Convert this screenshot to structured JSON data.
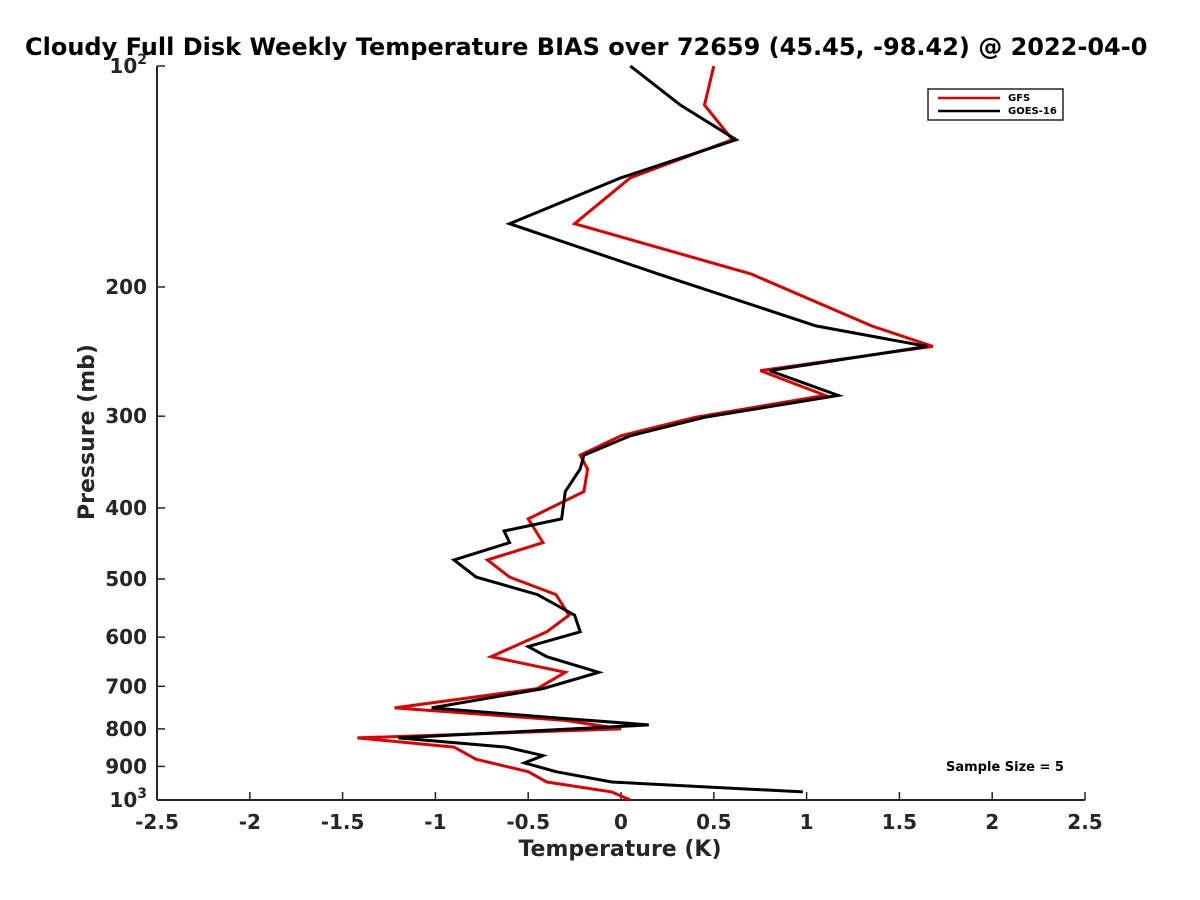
{
  "chart_data": {
    "type": "line",
    "title": "Cloudy Full Disk Weekly Temperature BIAS over 72659 (45.45, -98.42) @ 2022-04-0",
    "xlabel": "Temperature (K)",
    "ylabel": "Pressure (mb)",
    "xlim": [
      -2.5,
      2.5
    ],
    "ylim": [
      100,
      1000
    ],
    "y_scale": "log",
    "y_reversed": true,
    "grid": false,
    "legend_position": "top-right",
    "x_ticks": [
      "-2.5",
      "-2",
      "-1.5",
      "-1",
      "-0.5",
      "0",
      "0.5",
      "1",
      "1.5",
      "2",
      "2.5"
    ],
    "x_tick_values": [
      -2.5,
      -2,
      -1.5,
      -1,
      -0.5,
      0,
      0.5,
      1,
      1.5,
      2,
      2.5
    ],
    "y_ticks": [
      {
        "value": 100,
        "base": "10",
        "exp": "2"
      },
      {
        "value": 200,
        "base": "200",
        "exp": ""
      },
      {
        "value": 300,
        "base": "300",
        "exp": ""
      },
      {
        "value": 400,
        "base": "400",
        "exp": ""
      },
      {
        "value": 500,
        "base": "500",
        "exp": ""
      },
      {
        "value": 600,
        "base": "600",
        "exp": ""
      },
      {
        "value": 700,
        "base": "700",
        "exp": ""
      },
      {
        "value": 800,
        "base": "800",
        "exp": ""
      },
      {
        "value": 900,
        "base": "900",
        "exp": ""
      },
      {
        "value": 1000,
        "base": "10",
        "exp": "3"
      }
    ],
    "annotation": "Sample Size = 5",
    "series": [
      {
        "name": "GFS",
        "color": "#e00000",
        "points": [
          [
            0.5,
            100
          ],
          [
            0.45,
            113
          ],
          [
            0.6,
            126
          ],
          [
            0.05,
            142
          ],
          [
            -0.25,
            164
          ],
          [
            0.7,
            192
          ],
          [
            1.35,
            226
          ],
          [
            1.68,
            241
          ],
          [
            0.75,
            260
          ],
          [
            1.1,
            281
          ],
          [
            0.4,
            301
          ],
          [
            0.0,
            319
          ],
          [
            -0.22,
            339
          ],
          [
            -0.18,
            354
          ],
          [
            -0.2,
            380
          ],
          [
            -0.5,
            414
          ],
          [
            -0.42,
            446
          ],
          [
            -0.72,
            471
          ],
          [
            -0.6,
            497
          ],
          [
            -0.35,
            525
          ],
          [
            -0.28,
            560
          ],
          [
            -0.4,
            590
          ],
          [
            -0.7,
            638
          ],
          [
            -0.3,
            670
          ],
          [
            -0.45,
            705
          ],
          [
            -1.22,
            749
          ],
          [
            -0.3,
            779
          ],
          [
            0.0,
            800
          ],
          [
            -1.42,
            823
          ],
          [
            -0.9,
            847
          ],
          [
            -0.78,
            880
          ],
          [
            -0.5,
            915
          ],
          [
            -0.4,
            945
          ],
          [
            -0.05,
            975
          ],
          [
            0.05,
            1000
          ]
        ]
      },
      {
        "name": "GOES-16",
        "color": "#000000",
        "points": [
          [
            0.05,
            100
          ],
          [
            0.32,
            113
          ],
          [
            0.62,
            126
          ],
          [
            0.0,
            142
          ],
          [
            -0.6,
            164
          ],
          [
            0.2,
            192
          ],
          [
            1.05,
            226
          ],
          [
            1.65,
            241
          ],
          [
            0.8,
            260
          ],
          [
            1.17,
            281
          ],
          [
            0.45,
            301
          ],
          [
            0.05,
            319
          ],
          [
            -0.2,
            339
          ],
          [
            -0.22,
            354
          ],
          [
            -0.3,
            380
          ],
          [
            -0.32,
            414
          ],
          [
            -0.63,
            430
          ],
          [
            -0.6,
            446
          ],
          [
            -0.9,
            471
          ],
          [
            -0.78,
            497
          ],
          [
            -0.45,
            525
          ],
          [
            -0.25,
            560
          ],
          [
            -0.22,
            590
          ],
          [
            -0.5,
            618
          ],
          [
            -0.4,
            638
          ],
          [
            -0.12,
            670
          ],
          [
            -0.42,
            705
          ],
          [
            -1.02,
            749
          ],
          [
            -0.35,
            773
          ],
          [
            0.15,
            790
          ],
          [
            -1.2,
            823
          ],
          [
            -0.62,
            847
          ],
          [
            -0.42,
            870
          ],
          [
            -0.52,
            890
          ],
          [
            -0.35,
            915
          ],
          [
            -0.05,
            945
          ],
          [
            0.98,
            975
          ]
        ]
      }
    ]
  }
}
